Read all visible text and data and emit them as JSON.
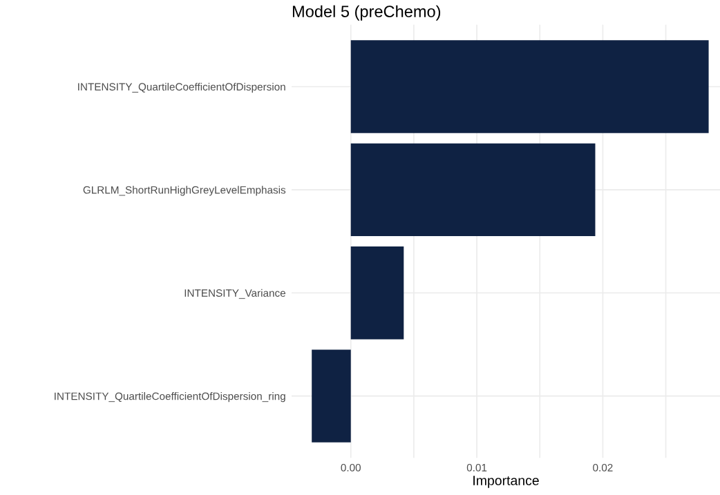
{
  "chart_data": {
    "type": "bar",
    "orientation": "horizontal",
    "title": "Model 5 (preChemo)",
    "xlabel": "Importance",
    "categories": [
      "INTENSITY_QuartileCoefficientOfDispersion",
      "GLRLM_ShortRunHighGreyLevelEmphasis",
      "INTENSITY_Variance",
      "INTENSITY_QuartileCoefficientOfDispersion_ring"
    ],
    "values": [
      0.0284,
      0.0194,
      0.0042,
      -0.0031
    ],
    "color": "#0f2243",
    "xlim": [
      -0.0047,
      0.0293
    ],
    "xticks": [
      {
        "value": 0,
        "label": "0.00"
      },
      {
        "value": 0.005,
        "label": null
      },
      {
        "value": 0.01,
        "label": "0.01"
      },
      {
        "value": 0.015,
        "label": null
      },
      {
        "value": 0.02,
        "label": "0.02"
      },
      {
        "value": 0.025,
        "label": null
      }
    ],
    "grid": true
  }
}
